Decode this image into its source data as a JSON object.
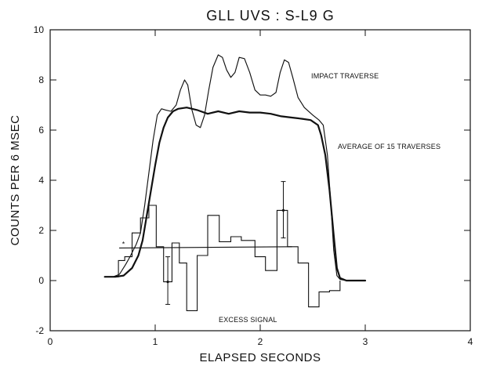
{
  "chart_data": {
    "type": "line",
    "title": "GLL UVS : S-L9 G",
    "xlabel": "ELAPSED SECONDS",
    "ylabel": "COUNTS PER 6 MSEC",
    "xlim": [
      0,
      4
    ],
    "ylim": [
      -2,
      10
    ],
    "xticks": [
      0,
      1,
      2,
      3,
      4
    ],
    "yticks": [
      -2,
      0,
      2,
      4,
      6,
      8,
      10
    ],
    "grid": false,
    "legend": "none",
    "annotations": {
      "impact": "IMPACT TRAVERSE",
      "average": "AVERAGE OF 15 TRAVERSES",
      "excess": "EXCESS SIGNAL"
    },
    "series": [
      {
        "key": "impact",
        "style": "thin",
        "points": [
          [
            0.52,
            0.15
          ],
          [
            0.6,
            0.15
          ],
          [
            0.66,
            0.25
          ],
          [
            0.72,
            0.65
          ],
          [
            0.76,
            0.95
          ],
          [
            0.82,
            1.45
          ],
          [
            0.86,
            1.9
          ],
          [
            0.9,
            3.0
          ],
          [
            0.94,
            4.3
          ],
          [
            0.98,
            5.6
          ],
          [
            1.02,
            6.6
          ],
          [
            1.06,
            6.85
          ],
          [
            1.1,
            6.8
          ],
          [
            1.15,
            6.75
          ],
          [
            1.2,
            7.0
          ],
          [
            1.24,
            7.6
          ],
          [
            1.28,
            8.0
          ],
          [
            1.31,
            7.8
          ],
          [
            1.35,
            6.8
          ],
          [
            1.39,
            6.2
          ],
          [
            1.43,
            6.1
          ],
          [
            1.47,
            6.6
          ],
          [
            1.51,
            7.6
          ],
          [
            1.55,
            8.5
          ],
          [
            1.6,
            9.0
          ],
          [
            1.64,
            8.9
          ],
          [
            1.68,
            8.4
          ],
          [
            1.72,
            8.1
          ],
          [
            1.76,
            8.3
          ],
          [
            1.8,
            8.9
          ],
          [
            1.85,
            8.85
          ],
          [
            1.9,
            8.3
          ],
          [
            1.95,
            7.6
          ],
          [
            2.0,
            7.4
          ],
          [
            2.05,
            7.4
          ],
          [
            2.1,
            7.35
          ],
          [
            2.15,
            7.5
          ],
          [
            2.19,
            8.3
          ],
          [
            2.23,
            8.8
          ],
          [
            2.27,
            8.7
          ],
          [
            2.31,
            8.1
          ],
          [
            2.36,
            7.3
          ],
          [
            2.42,
            6.9
          ],
          [
            2.5,
            6.6
          ],
          [
            2.56,
            6.4
          ],
          [
            2.6,
            6.2
          ],
          [
            2.64,
            5.0
          ],
          [
            2.67,
            3.2
          ],
          [
            2.7,
            1.2
          ],
          [
            2.73,
            0.2
          ],
          [
            2.76,
            0.05
          ],
          [
            2.82,
            0.0
          ],
          [
            3.0,
            0.0
          ]
        ]
      },
      {
        "key": "average",
        "style": "thick",
        "points": [
          [
            0.52,
            0.15
          ],
          [
            0.62,
            0.15
          ],
          [
            0.7,
            0.2
          ],
          [
            0.78,
            0.5
          ],
          [
            0.84,
            1.0
          ],
          [
            0.88,
            1.6
          ],
          [
            0.92,
            2.6
          ],
          [
            0.96,
            3.6
          ],
          [
            1.0,
            4.6
          ],
          [
            1.04,
            5.5
          ],
          [
            1.08,
            6.1
          ],
          [
            1.12,
            6.5
          ],
          [
            1.17,
            6.75
          ],
          [
            1.22,
            6.85
          ],
          [
            1.3,
            6.9
          ],
          [
            1.4,
            6.8
          ],
          [
            1.5,
            6.65
          ],
          [
            1.6,
            6.75
          ],
          [
            1.7,
            6.65
          ],
          [
            1.8,
            6.75
          ],
          [
            1.9,
            6.7
          ],
          [
            2.0,
            6.7
          ],
          [
            2.1,
            6.65
          ],
          [
            2.2,
            6.55
          ],
          [
            2.3,
            6.5
          ],
          [
            2.4,
            6.45
          ],
          [
            2.48,
            6.4
          ],
          [
            2.55,
            6.2
          ],
          [
            2.58,
            5.8
          ],
          [
            2.62,
            5.0
          ],
          [
            2.66,
            3.6
          ],
          [
            2.7,
            1.8
          ],
          [
            2.73,
            0.5
          ],
          [
            2.76,
            0.1
          ],
          [
            2.82,
            0.0
          ],
          [
            3.0,
            0.0
          ]
        ]
      },
      {
        "key": "baseline",
        "style": "thin",
        "points": [
          [
            0.66,
            1.3
          ],
          [
            2.3,
            1.35
          ]
        ]
      }
    ],
    "excess_steps": [
      [
        0.62,
        0.15
      ],
      [
        0.65,
        0.8
      ],
      [
        0.71,
        0.95
      ],
      [
        0.78,
        1.9
      ],
      [
        0.86,
        2.5
      ],
      [
        0.94,
        3.0
      ],
      [
        1.01,
        1.35
      ],
      [
        1.08,
        -0.05
      ],
      [
        1.16,
        1.5
      ],
      [
        1.23,
        0.7
      ],
      [
        1.3,
        -1.2
      ],
      [
        1.4,
        1.0
      ],
      [
        1.5,
        2.6
      ],
      [
        1.61,
        1.55
      ],
      [
        1.72,
        1.75
      ],
      [
        1.82,
        1.6
      ],
      [
        1.95,
        0.95
      ],
      [
        2.05,
        0.4
      ],
      [
        2.16,
        2.8
      ],
      [
        2.26,
        1.35
      ],
      [
        2.36,
        0.7
      ],
      [
        2.46,
        -1.05
      ],
      [
        2.56,
        -0.45
      ],
      [
        2.66,
        -0.4
      ],
      [
        2.76,
        0.0
      ]
    ],
    "error_bars": [
      {
        "x": 1.12,
        "y": -0.05,
        "low": -0.95,
        "high": 0.95
      },
      {
        "x": 2.22,
        "y": 2.8,
        "low": 1.7,
        "high": 3.95
      }
    ],
    "marker": {
      "x": 0.7,
      "y": 1.45,
      "symbol": "*"
    }
  }
}
